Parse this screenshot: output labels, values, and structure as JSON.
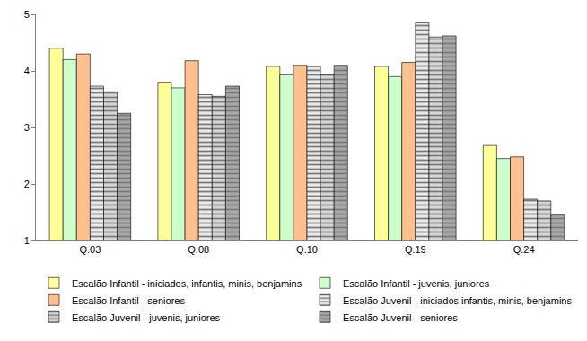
{
  "chart_data": {
    "type": "bar",
    "categories": [
      "Q.03",
      "Q.08",
      "Q.10",
      "Q.19",
      "Q.24"
    ],
    "series": [
      {
        "name": "Escalão Infantil - iniciados, infantis, minis, benjamins",
        "color": "#FFFF99",
        "marker": "solid",
        "values": [
          4.4,
          3.8,
          4.08,
          4.08,
          2.68
        ]
      },
      {
        "name": "Escalão Infantil - juvenis, juniores",
        "color": "#CCFFCC",
        "marker": "solid",
        "values": [
          4.2,
          3.7,
          3.93,
          3.9,
          2.45
        ]
      },
      {
        "name": "Escalão Infantil - seniores",
        "color": "#FFC090",
        "marker": "solid",
        "values": [
          4.3,
          4.18,
          4.1,
          4.15,
          2.48
        ]
      },
      {
        "name": "Escalão Juvenil - iniciados infantis, minis, benjamins",
        "color": "#EAEAEA",
        "marker": "striped",
        "values": [
          3.73,
          3.58,
          4.08,
          4.85,
          1.73
        ]
      },
      {
        "name": "Escalão Juvenil - juvenis, juniores",
        "color": "#D6D6D6",
        "marker": "striped",
        "values": [
          3.63,
          3.55,
          3.93,
          4.6,
          1.7
        ]
      },
      {
        "name": "Escalão Juvenil - seniores",
        "color": "#A8A8A8",
        "marker": "striped",
        "values": [
          3.25,
          3.73,
          4.1,
          4.62,
          1.45
        ]
      }
    ],
    "ylim": [
      1,
      5
    ],
    "yticks": [
      1,
      2,
      3,
      4,
      5
    ],
    "grid": false,
    "legend": "bottom"
  }
}
